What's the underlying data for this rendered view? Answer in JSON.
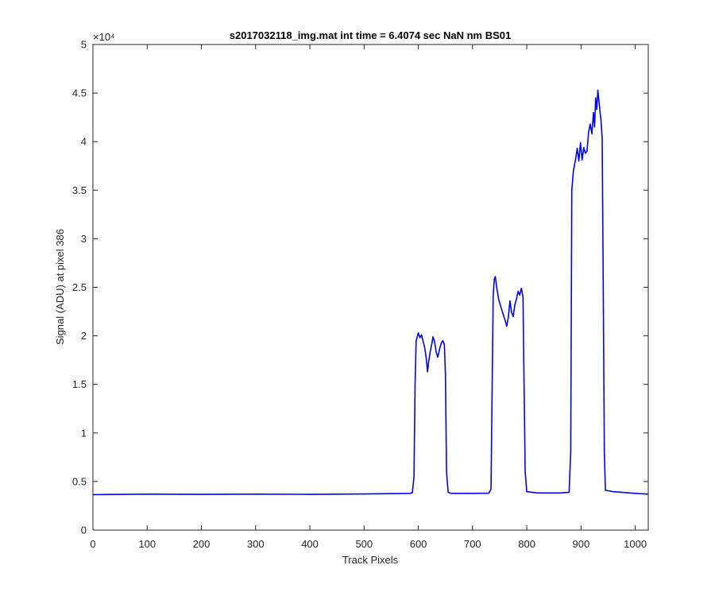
{
  "chart_data": {
    "type": "line",
    "title": "s2017032118_img.mat int time = 6.4074 sec  NaN nm BS01",
    "xlabel": "Track Pixels",
    "ylabel": "Signal (ADU) at pixel 386",
    "xlim": [
      0,
      1024
    ],
    "ylim": [
      0,
      50000
    ],
    "grid": false,
    "x_ticks": [
      0,
      100,
      200,
      300,
      400,
      500,
      600,
      700,
      800,
      900,
      1000
    ],
    "x_tick_labels": [
      "0",
      "100",
      "200",
      "300",
      "400",
      "500",
      "600",
      "700",
      "800",
      "900",
      "1000"
    ],
    "y_ticks": [
      0,
      5000,
      10000,
      15000,
      20000,
      25000,
      30000,
      35000,
      40000,
      45000,
      50000
    ],
    "y_tick_labels": [
      "0",
      "0.5",
      "1",
      "1.5",
      "2",
      "2.5",
      "3",
      "3.5",
      "4",
      "4.5",
      "5"
    ],
    "y_exponent_label": "×10⁴",
    "series": [
      {
        "color": "#0000ff",
        "points": [
          [
            0,
            3650
          ],
          [
            100,
            3700
          ],
          [
            200,
            3680
          ],
          [
            300,
            3700
          ],
          [
            400,
            3680
          ],
          [
            500,
            3720
          ],
          [
            585,
            3780
          ],
          [
            589,
            3850
          ],
          [
            592,
            5500
          ],
          [
            594,
            15000
          ],
          [
            596,
            19500
          ],
          [
            600,
            20300
          ],
          [
            603,
            19800
          ],
          [
            606,
            20100
          ],
          [
            609,
            19400
          ],
          [
            612,
            18700
          ],
          [
            615,
            17500
          ],
          [
            617,
            16300
          ],
          [
            619,
            17300
          ],
          [
            622,
            18400
          ],
          [
            625,
            19200
          ],
          [
            627,
            19900
          ],
          [
            630,
            19400
          ],
          [
            633,
            18300
          ],
          [
            636,
            17800
          ],
          [
            639,
            18600
          ],
          [
            642,
            19200
          ],
          [
            645,
            19500
          ],
          [
            648,
            19100
          ],
          [
            650,
            16000
          ],
          [
            652,
            6000
          ],
          [
            655,
            3900
          ],
          [
            660,
            3780
          ],
          [
            700,
            3780
          ],
          [
            730,
            3800
          ],
          [
            734,
            4200
          ],
          [
            736,
            14000
          ],
          [
            738,
            24000
          ],
          [
            740,
            25800
          ],
          [
            742,
            26100
          ],
          [
            745,
            24800
          ],
          [
            748,
            23800
          ],
          [
            752,
            23000
          ],
          [
            756,
            22300
          ],
          [
            760,
            21600
          ],
          [
            763,
            21000
          ],
          [
            766,
            21900
          ],
          [
            769,
            23600
          ],
          [
            772,
            22400
          ],
          [
            775,
            22000
          ],
          [
            778,
            23200
          ],
          [
            781,
            23800
          ],
          [
            784,
            24600
          ],
          [
            787,
            24200
          ],
          [
            790,
            24900
          ],
          [
            793,
            24000
          ],
          [
            795,
            15000
          ],
          [
            797,
            6000
          ],
          [
            800,
            3950
          ],
          [
            820,
            3820
          ],
          [
            860,
            3820
          ],
          [
            878,
            3880
          ],
          [
            881,
            8000
          ],
          [
            883,
            35000
          ],
          [
            886,
            37000
          ],
          [
            890,
            38200
          ],
          [
            893,
            39300
          ],
          [
            896,
            38000
          ],
          [
            899,
            39900
          ],
          [
            902,
            38100
          ],
          [
            905,
            39400
          ],
          [
            908,
            38800
          ],
          [
            911,
            39000
          ],
          [
            914,
            41000
          ],
          [
            917,
            41800
          ],
          [
            920,
            40800
          ],
          [
            923,
            43000
          ],
          [
            925,
            41500
          ],
          [
            927,
            44500
          ],
          [
            929,
            43300
          ],
          [
            931,
            45300
          ],
          [
            933,
            44200
          ],
          [
            935,
            43100
          ],
          [
            937,
            42100
          ],
          [
            939,
            40300
          ],
          [
            941,
            25000
          ],
          [
            943,
            8000
          ],
          [
            945,
            4100
          ],
          [
            960,
            3950
          ],
          [
            1000,
            3780
          ],
          [
            1024,
            3700
          ]
        ]
      }
    ]
  }
}
